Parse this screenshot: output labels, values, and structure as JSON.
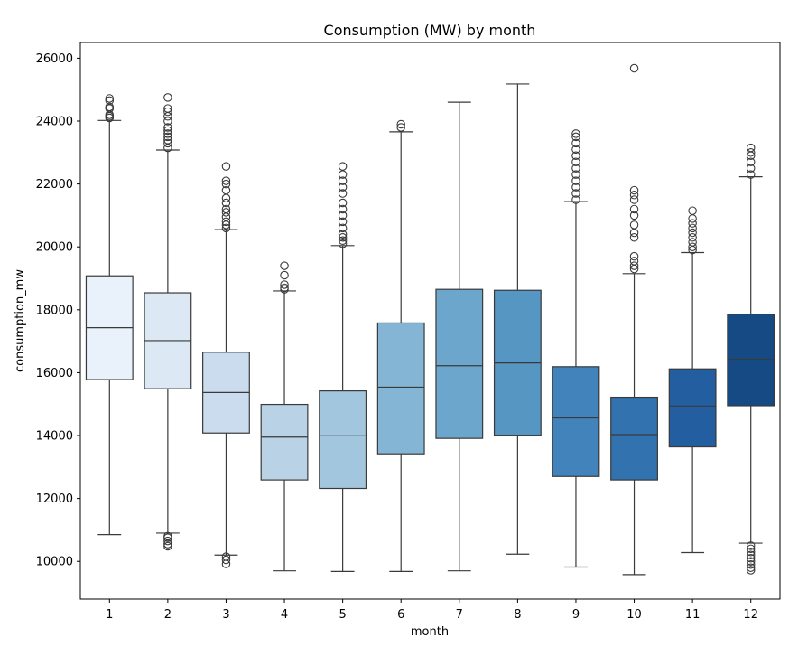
{
  "chart_data": {
    "type": "box",
    "title": "Consumption (MW) by month",
    "xlabel": "month",
    "ylabel": "consumption_mw",
    "ylim": [
      8800,
      26500
    ],
    "yticks": [
      10000,
      12000,
      14000,
      16000,
      18000,
      20000,
      22000,
      24000,
      26000
    ],
    "yticklabels": [
      "10000",
      "12000",
      "14000",
      "16000",
      "18000",
      "20000",
      "22000",
      "24000",
      "26000"
    ],
    "categories": [
      "1",
      "2",
      "3",
      "4",
      "5",
      "6",
      "7",
      "8",
      "9",
      "10",
      "11",
      "12"
    ],
    "grid": false,
    "legend": "none",
    "boxes": [
      {
        "month": "1",
        "whisker_low": 10850,
        "q1": 15780,
        "median": 17430,
        "q3": 19080,
        "whisker_high": 24020,
        "outliers": [
          24100,
          24150,
          24200,
          24400,
          24450,
          24650,
          24720
        ],
        "color": "#e9f1fa"
      },
      {
        "month": "2",
        "whisker_low": 10900,
        "q1": 15490,
        "median": 17020,
        "q3": 18540,
        "whisker_high": 23080,
        "outliers": [
          10480,
          10550,
          10650,
          10750,
          10800,
          23150,
          23300,
          23400,
          23500,
          23600,
          23700,
          23800,
          24000,
          24150,
          24300,
          24400,
          24750
        ],
        "color": "#dce8f4"
      },
      {
        "month": "3",
        "whisker_low": 10200,
        "q1": 14080,
        "median": 15370,
        "q3": 16650,
        "whisker_high": 20550,
        "outliers": [
          9920,
          10050,
          10150,
          20600,
          20700,
          20800,
          20950,
          21100,
          21200,
          21400,
          21550,
          21800,
          22000,
          22100,
          22560
        ],
        "color": "#cbdcee"
      },
      {
        "month": "4",
        "whisker_low": 9700,
        "q1": 12590,
        "median": 13950,
        "q3": 14990,
        "whisker_high": 18600,
        "outliers": [
          18650,
          18700,
          18800,
          19100,
          19400
        ],
        "color": "#b9d2e6"
      },
      {
        "month": "5",
        "whisker_low": 9680,
        "q1": 12320,
        "median": 13990,
        "q3": 15420,
        "whisker_high": 20040,
        "outliers": [
          20100,
          20200,
          20300,
          20400,
          20600,
          20800,
          21000,
          21200,
          21400,
          21700,
          21900,
          22100,
          22300,
          22560
        ],
        "color": "#a2c6de"
      },
      {
        "month": "6",
        "whisker_low": 9680,
        "q1": 13420,
        "median": 15540,
        "q3": 17580,
        "whisker_high": 23660,
        "outliers": [
          23800,
          23900
        ],
        "color": "#84b5d5"
      },
      {
        "month": "7",
        "whisker_low": 9700,
        "q1": 13910,
        "median": 16220,
        "q3": 18650,
        "whisker_high": 24600,
        "outliers": [],
        "color": "#6ca6cd"
      },
      {
        "month": "8",
        "whisker_low": 10230,
        "q1": 14010,
        "median": 16310,
        "q3": 18620,
        "whisker_high": 25180,
        "outliers": [],
        "color": "#5696c3"
      },
      {
        "month": "9",
        "whisker_low": 9820,
        "q1": 12700,
        "median": 14560,
        "q3": 16190,
        "whisker_high": 21440,
        "outliers": [
          21500,
          21700,
          21900,
          22100,
          22300,
          22500,
          22700,
          22900,
          23100,
          23300,
          23500,
          23600
        ],
        "color": "#4283bb"
      },
      {
        "month": "10",
        "whisker_low": 9580,
        "q1": 12590,
        "median": 14030,
        "q3": 15220,
        "whisker_high": 19150,
        "outliers": [
          19300,
          19400,
          19550,
          19700,
          20300,
          20450,
          20700,
          21000,
          21200,
          21500,
          21650,
          21800,
          25680
        ],
        "color": "#3273af"
      },
      {
        "month": "11",
        "whisker_low": 10280,
        "q1": 13640,
        "median": 14940,
        "q3": 16120,
        "whisker_high": 19820,
        "outliers": [
          19900,
          20000,
          20150,
          20300,
          20450,
          20600,
          20750,
          20900,
          21150
        ],
        "color": "#225ea0"
      },
      {
        "month": "12",
        "whisker_low": 10580,
        "q1": 14950,
        "median": 16430,
        "q3": 17860,
        "whisker_high": 22230,
        "outliers": [
          9720,
          9800,
          9900,
          10000,
          10100,
          10200,
          10300,
          10400,
          10500,
          22300,
          22500,
          22700,
          22900,
          23000,
          23150
        ],
        "color": "#154a84"
      }
    ]
  }
}
